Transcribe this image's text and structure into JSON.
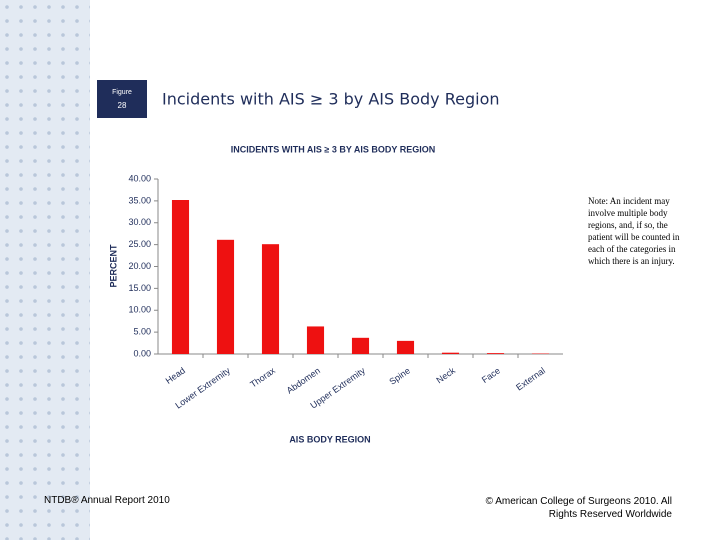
{
  "figure_label": {
    "word": "Figure",
    "number": "28"
  },
  "heading": "Incidents with AIS ≥ 3 by AIS Body Region",
  "note": "Note: An incident may involve multiple body regions, and, if so, the patient will be counted in each of the categories in which there is an injury.",
  "footer_left": "NTDB® Annual Report 2010",
  "footer_right": "© American College of Surgeons 2010. All Rights Reserved Worldwide",
  "chart_data": {
    "type": "bar",
    "title": "INCIDENTS WITH AIS ≥ 3 BY AIS BODY REGION",
    "x_label": "AIS BODY REGION",
    "y_label": "PERCENT",
    "categories": [
      "Head",
      "Lower Extremity",
      "Thorax",
      "Abdomen",
      "Upper Extremity",
      "Spine",
      "Neck",
      "Face",
      "External"
    ],
    "values": [
      35.2,
      26.1,
      25.1,
      6.3,
      3.7,
      3.0,
      0.3,
      0.2,
      0.1
    ],
    "color": "#ee1111",
    "ylim": [
      0,
      40
    ],
    "yticks": [
      {
        "value": 0,
        "label": "0.00"
      },
      {
        "value": 5,
        "label": "5.00"
      },
      {
        "value": 10,
        "label": "10.00"
      },
      {
        "value": 15,
        "label": "15.00"
      },
      {
        "value": 20,
        "label": "20.00"
      },
      {
        "value": 25,
        "label": "25.00"
      },
      {
        "value": 30,
        "label": "30.00"
      },
      {
        "value": 35,
        "label": "35.00"
      },
      {
        "value": 40,
        "label": "40.00"
      }
    ],
    "grid": false
  }
}
